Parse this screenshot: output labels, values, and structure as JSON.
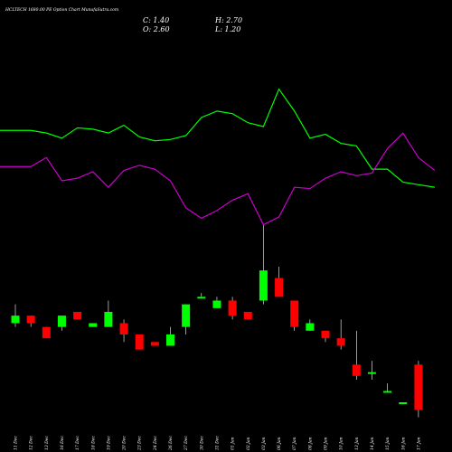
{
  "title": "HCLTECH 1680.00 PE Option Chart MunafaSutra.com",
  "ohlc": {
    "close": "C: 1.40",
    "high": "H: 2.70",
    "open": "O: 2.60",
    "low": "L: 1.20"
  },
  "colors": {
    "background": "#000000",
    "up_candle": "#00ff00",
    "down_candle": "#ff0000",
    "line_green": "#00ff00",
    "line_magenta": "#cc00cc",
    "wick": "#ffffff"
  },
  "chart_data": {
    "type": "candlestick",
    "title": "HCLTECH 1680.00 PE Option Chart MunafaSutra.com",
    "dates": [
      "11 Dec",
      "12 Dec",
      "13 Dec",
      "16 Dec",
      "17 Dec",
      "18 Dec",
      "19 Dec",
      "20 Dec",
      "23 Dec",
      "24 Dec",
      "26 Dec",
      "27 Dec",
      "30 Dec",
      "31 Dec",
      "01 Jan",
      "02 Jan",
      "03 Jan",
      "06 Jan",
      "07 Jan",
      "08 Jan",
      "09 Jan",
      "10 Jan",
      "13 Jan",
      "14 Jan",
      "15 Jan",
      "16 Jan",
      "17 Jan"
    ],
    "candles": [
      {
        "open": 3.7,
        "high": 4.2,
        "low": 3.6,
        "close": 3.9
      },
      {
        "open": 3.9,
        "high": 3.9,
        "low": 3.6,
        "close": 3.7
      },
      {
        "open": 3.6,
        "high": 3.6,
        "low": 3.3,
        "close": 3.3
      },
      {
        "open": 3.6,
        "high": 3.9,
        "low": 3.5,
        "close": 3.9
      },
      {
        "open": 4.0,
        "high": 4.0,
        "low": 3.8,
        "close": 3.8
      },
      {
        "open": 3.6,
        "high": 3.7,
        "low": 3.6,
        "close": 3.7
      },
      {
        "open": 3.6,
        "high": 4.3,
        "low": 3.6,
        "close": 4.0
      },
      {
        "open": 3.7,
        "high": 3.8,
        "low": 3.2,
        "close": 3.4
      },
      {
        "open": 3.4,
        "high": 3.4,
        "low": 3.0,
        "close": 3.0
      },
      {
        "open": 3.2,
        "high": 3.2,
        "low": 3.1,
        "close": 3.1
      },
      {
        "open": 3.1,
        "high": 3.6,
        "low": 3.1,
        "close": 3.4
      },
      {
        "open": 3.6,
        "high": 4.2,
        "low": 3.4,
        "close": 4.2
      },
      {
        "open": 4.4,
        "high": 4.5,
        "low": 4.4,
        "close": 4.4
      },
      {
        "open": 4.1,
        "high": 4.4,
        "low": 4.1,
        "close": 4.3
      },
      {
        "open": 4.3,
        "high": 4.4,
        "low": 3.8,
        "close": 3.9
      },
      {
        "open": 4.0,
        "high": 4.0,
        "low": 3.8,
        "close": 3.8
      },
      {
        "open": 4.3,
        "high": 6.3,
        "low": 4.2,
        "close": 5.1
      },
      {
        "open": 4.9,
        "high": 5.2,
        "low": 4.4,
        "close": 4.4
      },
      {
        "open": 4.3,
        "high": 4.3,
        "low": 3.5,
        "close": 3.6
      },
      {
        "open": 3.5,
        "high": 3.8,
        "low": 3.5,
        "close": 3.7
      },
      {
        "open": 3.5,
        "high": 3.5,
        "low": 3.2,
        "close": 3.3
      },
      {
        "open": 3.3,
        "high": 3.8,
        "low": 3.0,
        "close": 3.1
      },
      {
        "open": 2.6,
        "high": 3.5,
        "low": 2.2,
        "close": 2.3
      },
      {
        "open": 2.4,
        "high": 2.7,
        "low": 2.2,
        "close": 2.4
      },
      {
        "open": 1.9,
        "high": 2.1,
        "low": 1.9,
        "close": 1.9
      },
      {
        "open": 1.6,
        "high": 1.6,
        "low": 1.6,
        "close": 1.6
      },
      {
        "open": 2.6,
        "high": 2.7,
        "low": 1.2,
        "close": 1.4
      }
    ],
    "series": [
      {
        "color": "#00ff00",
        "values": [
          8.8,
          8.8,
          8.6,
          8.2,
          9.0,
          8.9,
          8.6,
          9.2,
          8.3,
          8.0,
          8.1,
          8.4,
          9.8,
          10.3,
          10.1,
          9.4,
          9.1,
          12.0,
          10.3,
          8.2,
          8.5,
          7.8,
          7.6,
          5.8,
          5.8,
          4.8,
          4.6
        ]
      },
      {
        "color": "#cc00cc",
        "values": [
          6.0,
          6.0,
          6.7,
          4.9,
          5.1,
          5.6,
          4.4,
          5.7,
          6.1,
          5.8,
          4.9,
          2.8,
          2.0,
          2.6,
          3.4,
          3.9,
          1.5,
          2.1,
          4.4,
          4.3,
          5.1,
          5.6,
          5.3,
          5.5,
          7.4,
          8.6,
          6.7
        ]
      }
    ]
  }
}
